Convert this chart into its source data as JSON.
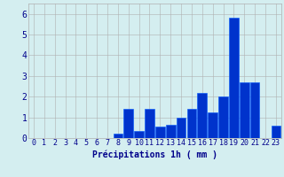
{
  "hours": [
    0,
    1,
    2,
    3,
    4,
    5,
    6,
    7,
    8,
    9,
    10,
    11,
    12,
    13,
    14,
    15,
    16,
    17,
    18,
    19,
    20,
    21,
    22,
    23
  ],
  "values": [
    0,
    0,
    0,
    0,
    0,
    0,
    0,
    0,
    0.2,
    1.4,
    0.35,
    1.4,
    0.55,
    0.65,
    1.0,
    1.4,
    2.2,
    1.25,
    2.0,
    5.8,
    2.7,
    2.7,
    0,
    0.6
  ],
  "bar_color": "#0033cc",
  "bar_edge_color": "#0055ff",
  "background_color": "#d4eef0",
  "grid_color": "#b0b0b0",
  "text_color": "#00008b",
  "xlabel": "Précipitations 1h ( mm )",
  "ylim": [
    0,
    6.5
  ],
  "yticks": [
    0,
    1,
    2,
    3,
    4,
    5,
    6
  ],
  "label_fontsize": 7,
  "tick_fontsize": 6
}
